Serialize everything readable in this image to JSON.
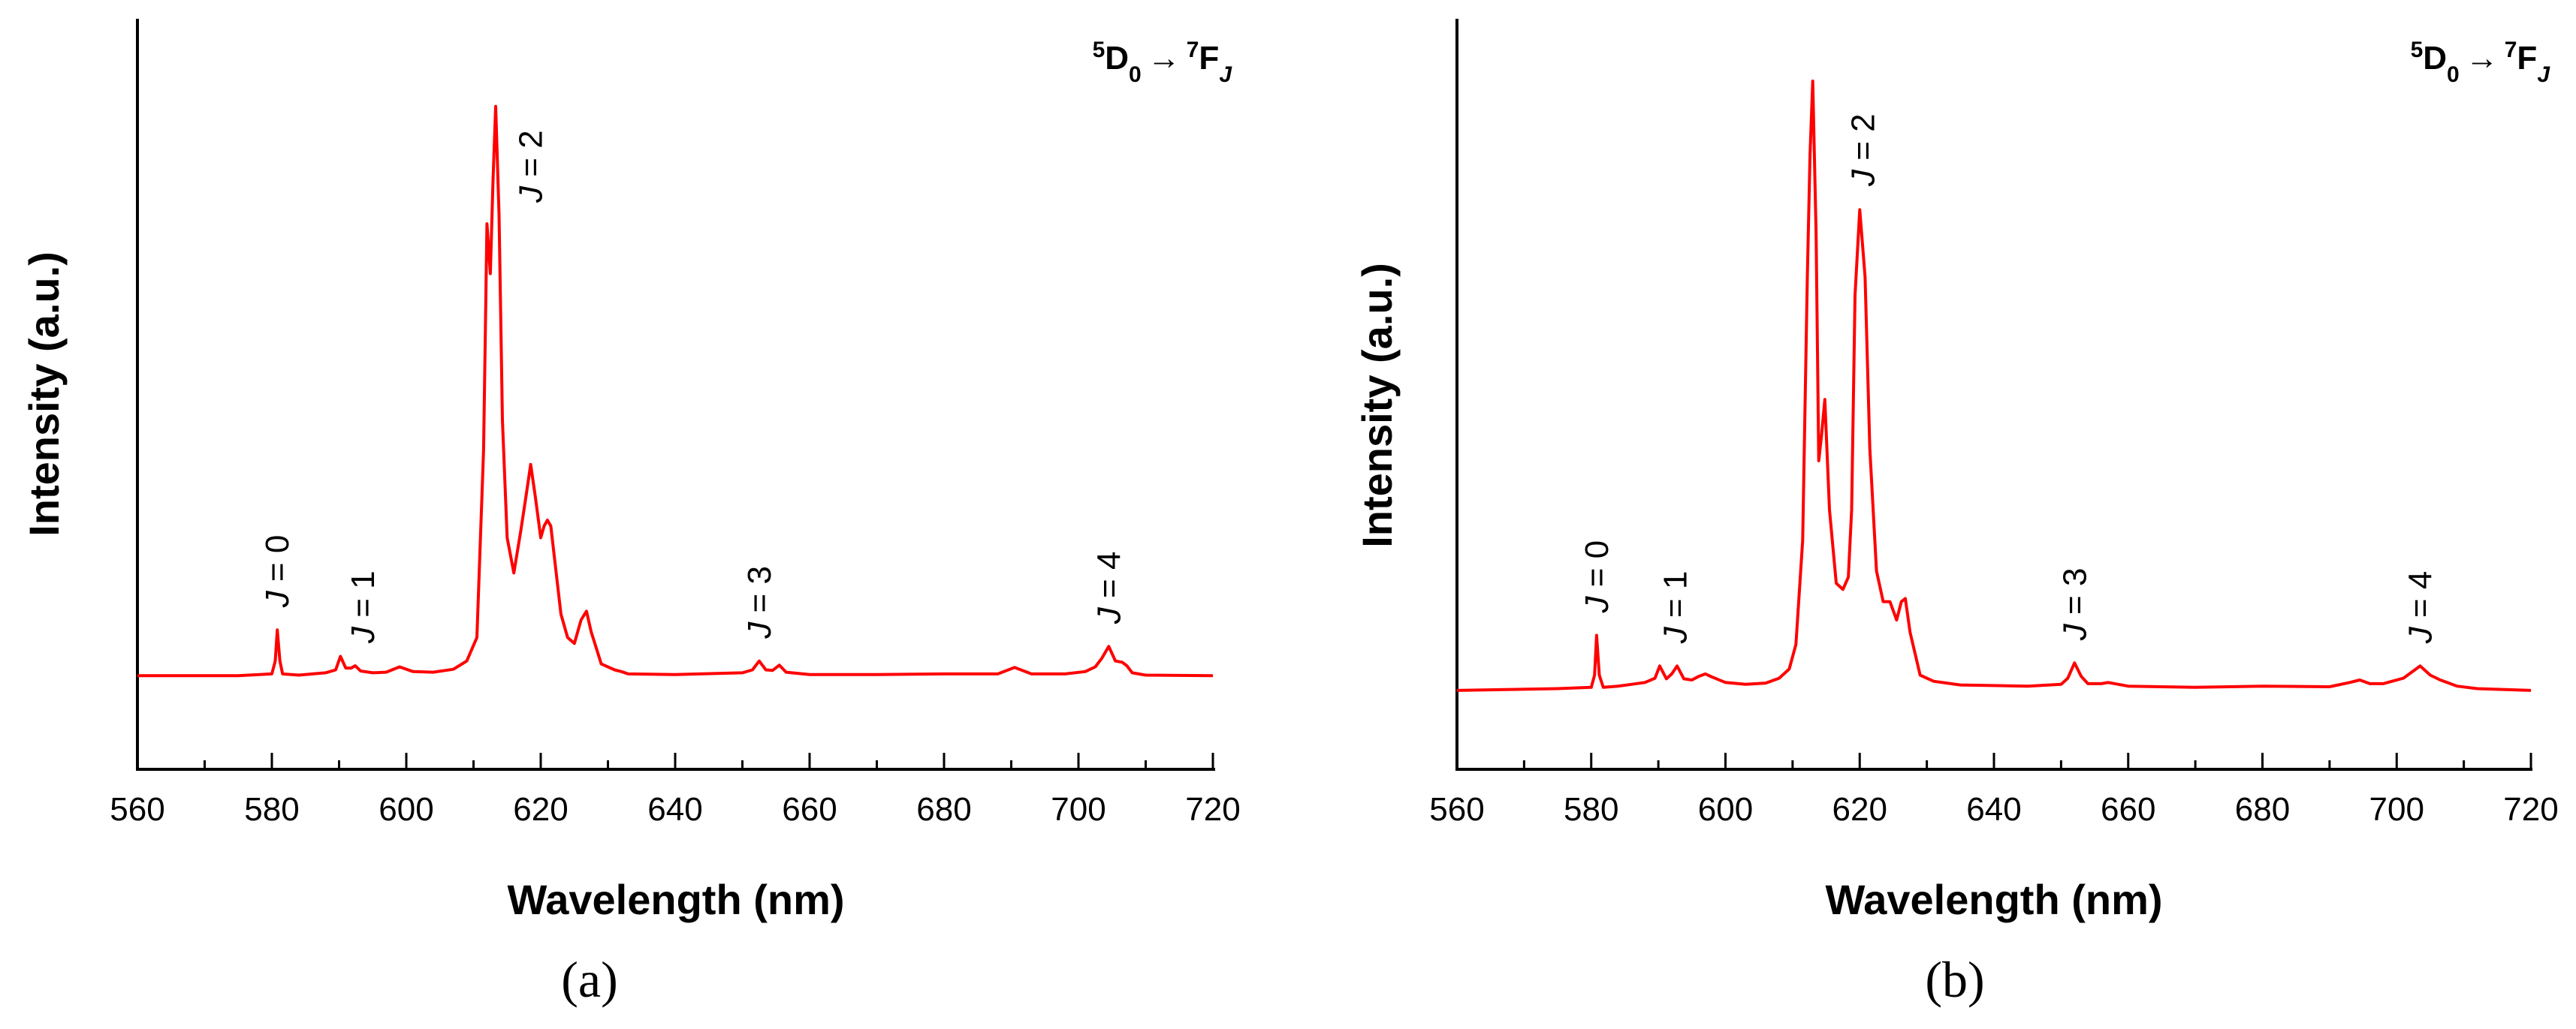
{
  "figure": {
    "panel_labels": [
      "(a)",
      "(b)"
    ]
  },
  "chart_data": [
    {
      "type": "line",
      "panel": "(a)",
      "xlabel": "Wavelength (nm)",
      "ylabel": "Intensity (a.u.)",
      "xlim": [
        560,
        720
      ],
      "ylim": [
        0,
        100
      ],
      "xticks": [
        "560",
        "580",
        "600",
        "620",
        "640",
        "660",
        "680",
        "700",
        "720"
      ],
      "yticks_shown": false,
      "grid": false,
      "transition_label": {
        "sup1": "5",
        "main1": "D",
        "sub1": "0",
        "arrow": "→",
        "sup2": "7",
        "main2": "F",
        "sub2": "J"
      },
      "peak_labels": [
        {
          "text": "J = 0",
          "x": 580.8
        },
        {
          "text": "J = 1",
          "x": 593.5
        },
        {
          "text": "J = 2",
          "x": 618.5
        },
        {
          "text": "J = 3",
          "x": 652.5
        },
        {
          "text": "J = 4",
          "x": 704.5
        }
      ],
      "series": [
        {
          "name": "spectrum-a",
          "color": "#ff0000",
          "x": [
            560,
            575,
            580,
            580.5,
            580.8,
            581.2,
            581.6,
            584,
            588,
            589.5,
            590.2,
            591,
            591.8,
            592.4,
            593.2,
            595,
            597,
            599,
            601,
            604,
            607,
            609,
            610.5,
            611.5,
            612,
            612.5,
            612.9,
            613.3,
            613.8,
            614.3,
            615,
            616,
            617,
            617.8,
            618.5,
            619.2,
            620,
            620.5,
            621,
            621.5,
            622.2,
            623,
            624,
            625,
            626,
            626.8,
            627.5,
            629,
            631,
            632,
            633,
            640,
            650,
            651.5,
            652.5,
            653.5,
            654.5,
            655.5,
            656.5,
            660,
            670,
            680,
            688,
            690.5,
            693,
            698,
            701,
            702.5,
            703.5,
            704.5,
            705.5,
            706.5,
            707.2,
            708,
            710,
            720
          ],
          "values": [
            1.5,
            1.5,
            1.8,
            4,
            9.3,
            4,
            1.8,
            1.6,
            2,
            2.5,
            4.8,
            2.8,
            2.8,
            3.2,
            2.3,
            2,
            2.1,
            3,
            2.2,
            2.1,
            2.6,
            4,
            8,
            40,
            78.5,
            70,
            86,
            98.5,
            80,
            45,
            25,
            19,
            26,
            32,
            37.5,
            32,
            25,
            27,
            28,
            27,
            20,
            12,
            8,
            7,
            11,
            12.5,
            9,
            3.5,
            2.5,
            2.2,
            1.8,
            1.7,
            2,
            2.5,
            4,
            2.5,
            2.4,
            3.3,
            2.1,
            1.7,
            1.7,
            1.8,
            1.8,
            2.9,
            1.8,
            1.8,
            2.2,
            3,
            4.5,
            6.5,
            4,
            3.8,
            3.2,
            2,
            1.6,
            1.5
          ]
        }
      ]
    },
    {
      "type": "line",
      "panel": "(b)",
      "xlabel": "Wavelength (nm)",
      "ylabel": "Intensity (a.u.)",
      "xlim": [
        560,
        720
      ],
      "ylim": [
        0,
        100
      ],
      "xticks": [
        "560",
        "580",
        "600",
        "620",
        "640",
        "660",
        "680",
        "700",
        "720"
      ],
      "yticks_shown": false,
      "grid": false,
      "transition_label": {
        "sup1": "5",
        "main1": "D",
        "sub1": "0",
        "arrow": "→",
        "sup2": "7",
        "main2": "F",
        "sub2": "J"
      },
      "peak_labels": [
        {
          "text": "J = 0",
          "x": 580.8
        },
        {
          "text": "J = 1",
          "x": 592.5
        },
        {
          "text": "J = 2",
          "x": 620.5
        },
        {
          "text": "J = 3",
          "x": 652
        },
        {
          "text": "J = 4",
          "x": 703.5
        }
      ],
      "series": [
        {
          "name": "spectrum-b",
          "color": "#ff0000",
          "x": [
            560,
            575,
            580,
            580.5,
            580.8,
            581.2,
            581.8,
            584,
            588,
            589.5,
            590.2,
            591.2,
            592,
            592.8,
            593.8,
            595,
            596,
            597,
            598,
            600,
            603,
            606,
            608,
            609.5,
            610.5,
            611.5,
            612.2,
            612.6,
            613,
            613.5,
            613.9,
            614.3,
            614.8,
            615.5,
            616.5,
            617.5,
            618.3,
            618.8,
            619.3,
            620,
            620.8,
            621.5,
            622.5,
            623.5,
            624.5,
            625.5,
            626.2,
            626.8,
            627.5,
            629,
            631,
            635,
            645,
            650,
            651,
            652,
            653,
            654,
            656,
            657,
            660,
            670,
            680,
            690,
            693,
            694.5,
            696,
            698,
            701,
            703.5,
            705,
            706.5,
            707.5,
            709,
            712,
            720
          ],
          "values": [
            0.5,
            0.8,
            1,
            3,
            9.5,
            3,
            1,
            1.2,
            1.8,
            2.5,
            4.5,
            2.4,
            3.2,
            4.5,
            2.4,
            2.2,
            2.8,
            3.2,
            2.7,
            1.8,
            1.5,
            1.7,
            2.5,
            4,
            8,
            25,
            68,
            88,
            100,
            75,
            38,
            42,
            48,
            30,
            18,
            17,
            19,
            30,
            65,
            79,
            68,
            40,
            20,
            15,
            15,
            12,
            15,
            15.5,
            10,
            3,
            2,
            1.4,
            1.2,
            1.5,
            2.5,
            5,
            2.8,
            1.6,
            1.6,
            1.8,
            1.2,
            1,
            1.2,
            1.1,
            1.8,
            2.2,
            1.6,
            1.6,
            2.5,
            4.5,
            3,
            2.2,
            1.8,
            1.2,
            0.8,
            0.5
          ]
        }
      ]
    }
  ]
}
